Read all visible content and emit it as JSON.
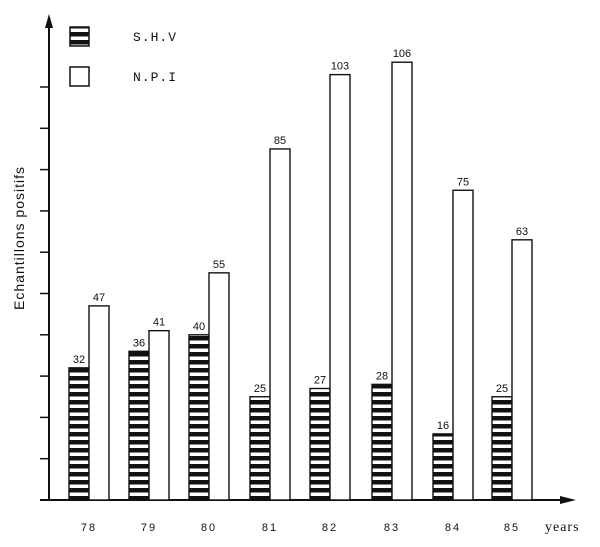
{
  "chart_data": {
    "type": "bar",
    "title": "",
    "xlabel": "years",
    "ylabel": "Echantillons positifs",
    "categories": [
      "78",
      "79",
      "80",
      "81",
      "82",
      "83",
      "84",
      "85"
    ],
    "series": [
      {
        "name": "S.H.V",
        "pattern": "horizontal-stripes",
        "values": [
          32,
          36,
          40,
          25,
          27,
          28,
          16,
          25
        ]
      },
      {
        "name": "N.P.I",
        "pattern": "empty",
        "values": [
          47,
          41,
          55,
          85,
          103,
          106,
          75,
          63
        ]
      }
    ],
    "ylim": [
      0,
      110
    ],
    "y_tick_step": 10,
    "y_tick_labels_shown": false,
    "grid": false,
    "legend_position": "top-left",
    "data_labels": true
  },
  "colors": {
    "ink": "#111111",
    "background": "#ffffff"
  }
}
